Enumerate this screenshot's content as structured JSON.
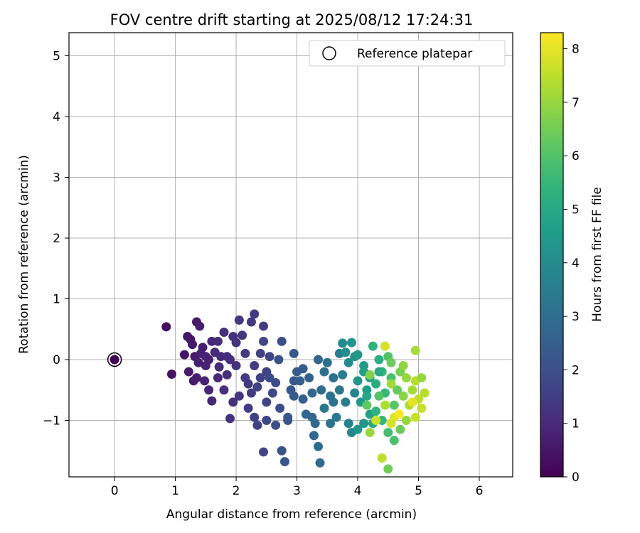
{
  "chart_data": {
    "type": "scatter",
    "title": "FOV centre drift starting at 2025/08/12 17:24:31",
    "xlabel": "Angular distance from reference (arcmin)",
    "ylabel": "Rotation from reference (arcmin)",
    "xlim": [
      -0.75,
      6.55
    ],
    "ylim": [
      -1.93,
      5.38
    ],
    "xticks": [
      0,
      1,
      2,
      3,
      4,
      5,
      6
    ],
    "yticks": [
      -1,
      0,
      1,
      2,
      3,
      4,
      5
    ],
    "grid": true,
    "legend": {
      "placement": "top-right",
      "entries": [
        "Reference platepar"
      ]
    },
    "colorbar": {
      "label": "Hours from first FF file",
      "colormap": "viridis",
      "range": [
        0,
        8.3
      ],
      "ticks": [
        0,
        1,
        2,
        3,
        4,
        5,
        6,
        7,
        8
      ]
    },
    "reference_point": {
      "x": 0,
      "y": 0,
      "color": 0
    },
    "points": [
      [
        0.85,
        0.54,
        0.3
      ],
      [
        0.94,
        -0.24,
        0.4
      ],
      [
        1.2,
        0.38,
        0.5
      ],
      [
        1.25,
        0.33,
        0.5
      ],
      [
        1.35,
        0.62,
        0.6
      ],
      [
        1.4,
        0.55,
        0.7
      ],
      [
        1.15,
        0.08,
        0.5
      ],
      [
        1.22,
        -0.2,
        0.6
      ],
      [
        1.3,
        -0.35,
        0.6
      ],
      [
        1.45,
        0.2,
        0.7
      ],
      [
        1.5,
        -0.1,
        0.8
      ],
      [
        1.55,
        -0.5,
        0.9
      ],
      [
        1.6,
        -0.68,
        0.9
      ],
      [
        1.32,
        0.05,
        0.6
      ],
      [
        1.42,
        0.1,
        0.7
      ],
      [
        1.38,
        -0.05,
        0.7
      ],
      [
        1.28,
        0.25,
        0.6
      ],
      [
        1.5,
        0.05,
        0.8
      ],
      [
        1.6,
        0.3,
        0.9
      ],
      [
        1.7,
        0.3,
        1.0
      ],
      [
        1.65,
        0.12,
        1.0
      ],
      [
        1.72,
        -0.12,
        1.0
      ],
      [
        1.8,
        0.45,
        1.1
      ],
      [
        1.75,
        0.05,
        1.0
      ],
      [
        1.85,
        -0.25,
        1.1
      ],
      [
        1.9,
        0.0,
        1.1
      ],
      [
        1.95,
        0.38,
        1.2
      ],
      [
        2.0,
        0.28,
        1.2
      ],
      [
        2.05,
        0.65,
        1.3
      ],
      [
        2.1,
        0.4,
        1.3
      ],
      [
        1.8,
        -0.5,
        1.1
      ],
      [
        1.95,
        -0.7,
        1.2
      ],
      [
        1.9,
        -0.97,
        1.2
      ],
      [
        2.2,
        -0.4,
        1.4
      ],
      [
        2.25,
        -0.55,
        1.4
      ],
      [
        2.3,
        0.75,
        1.5
      ],
      [
        2.25,
        0.62,
        1.4
      ],
      [
        2.45,
        0.55,
        1.5
      ],
      [
        2.15,
        0.1,
        1.4
      ],
      [
        2.3,
        -0.1,
        1.5
      ],
      [
        2.4,
        -0.3,
        1.6
      ],
      [
        2.2,
        -0.8,
        1.5
      ],
      [
        2.35,
        -1.08,
        1.6
      ],
      [
        2.45,
        -1.52,
        1.7
      ],
      [
        2.3,
        -0.95,
        1.6
      ],
      [
        2.5,
        -0.7,
        1.7
      ],
      [
        2.5,
        -1.0,
        1.8
      ],
      [
        2.6,
        -0.55,
        1.8
      ],
      [
        2.4,
        0.1,
        1.6
      ],
      [
        2.55,
        0.05,
        1.7
      ],
      [
        2.5,
        -0.2,
        1.7
      ],
      [
        2.65,
        -0.38,
        1.9
      ],
      [
        2.65,
        -1.08,
        2.0
      ],
      [
        2.72,
        -0.8,
        2.0
      ],
      [
        2.75,
        0.3,
        2.0
      ],
      [
        2.75,
        -1.5,
        2.1
      ],
      [
        2.8,
        -1.68,
        2.2
      ],
      [
        2.85,
        -1.0,
        2.2
      ],
      [
        2.85,
        -0.95,
        2.2
      ],
      [
        2.9,
        -0.5,
        2.3
      ],
      [
        2.95,
        0.1,
        2.3
      ],
      [
        3.0,
        -0.2,
        2.4
      ],
      [
        2.95,
        -0.6,
        2.4
      ],
      [
        3.05,
        -0.35,
        2.5
      ],
      [
        3.1,
        -0.65,
        2.5
      ],
      [
        3.2,
        -0.3,
        2.6
      ],
      [
        3.25,
        -0.95,
        2.7
      ],
      [
        3.3,
        -1.05,
        2.8
      ],
      [
        3.28,
        -1.25,
        2.8
      ],
      [
        3.35,
        -1.43,
        2.9
      ],
      [
        3.38,
        -1.7,
        2.9
      ],
      [
        3.4,
        -0.5,
        2.9
      ],
      [
        3.45,
        -0.2,
        3.0
      ],
      [
        3.5,
        -0.05,
        3.0
      ],
      [
        3.55,
        -0.6,
        3.1
      ],
      [
        3.6,
        -0.3,
        3.1
      ],
      [
        3.55,
        -1.05,
        3.2
      ],
      [
        3.65,
        -0.95,
        3.3
      ],
      [
        3.7,
        -0.5,
        3.3
      ],
      [
        3.7,
        0.1,
        3.4
      ],
      [
        3.75,
        -0.25,
        3.5
      ],
      [
        3.8,
        -0.7,
        3.6
      ],
      [
        3.85,
        -1.05,
        3.7
      ],
      [
        3.9,
        -1.2,
        3.8
      ],
      [
        3.95,
        -0.55,
        3.8
      ],
      [
        3.75,
        0.27,
        4.0
      ],
      [
        3.8,
        0.12,
        4.1
      ],
      [
        3.85,
        -0.05,
        4.0
      ],
      [
        3.95,
        0.05,
        4.2
      ],
      [
        4.0,
        -0.35,
        4.3
      ],
      [
        4.05,
        -0.7,
        4.4
      ],
      [
        3.9,
        0.28,
        4.3
      ],
      [
        4.0,
        0.08,
        4.4
      ],
      [
        4.1,
        -0.1,
        4.5
      ],
      [
        4.15,
        -0.5,
        4.6
      ],
      [
        4.2,
        -0.9,
        4.7
      ],
      [
        4.0,
        -1.15,
        4.3
      ],
      [
        4.1,
        -1.05,
        4.4
      ],
      [
        4.1,
        -0.2,
        4.6
      ],
      [
        4.2,
        -0.3,
        4.8
      ],
      [
        4.15,
        -0.6,
        4.9
      ],
      [
        4.25,
        -1.05,
        5.0
      ],
      [
        4.3,
        -0.4,
        5.1
      ],
      [
        4.35,
        0.0,
        5.2
      ],
      [
        4.25,
        0.22,
        5.3
      ],
      [
        4.3,
        -0.85,
        5.4
      ],
      [
        4.4,
        -0.2,
        5.5
      ],
      [
        4.4,
        -1.0,
        5.5
      ],
      [
        4.45,
        -0.55,
        5.6
      ],
      [
        4.5,
        -1.2,
        5.8
      ],
      [
        4.55,
        -0.3,
        5.9
      ],
      [
        4.5,
        0.05,
        6.0
      ],
      [
        4.6,
        -0.75,
        6.1
      ],
      [
        4.6,
        -1.33,
        5.9
      ],
      [
        4.65,
        -0.5,
        6.3
      ],
      [
        4.55,
        -0.05,
        6.4
      ],
      [
        4.7,
        -1.15,
        6.4
      ],
      [
        4.7,
        -0.2,
        6.6
      ],
      [
        4.75,
        -0.6,
        6.8
      ],
      [
        4.8,
        -0.3,
        7.0
      ],
      [
        4.8,
        -1.0,
        7.0
      ],
      [
        4.9,
        -0.5,
        7.2
      ],
      [
        4.85,
        -0.75,
        7.3
      ],
      [
        4.95,
        -0.35,
        7.4
      ],
      [
        5.0,
        -0.65,
        7.5
      ],
      [
        5.05,
        -0.8,
        7.6
      ],
      [
        5.1,
        -0.55,
        7.4
      ],
      [
        4.95,
        0.15,
        7.2
      ],
      [
        4.4,
        -1.62,
        7.5
      ],
      [
        4.5,
        -1.8,
        6.5
      ],
      [
        4.45,
        0.22,
        7.8
      ],
      [
        4.35,
        -0.6,
        6.0
      ],
      [
        4.2,
        -1.2,
        7.0
      ],
      [
        4.6,
        -0.95,
        7.9
      ],
      [
        4.68,
        -0.9,
        8.2
      ],
      [
        4.9,
        -0.7,
        8.0
      ],
      [
        4.55,
        -0.4,
        7.1
      ],
      [
        4.2,
        -0.25,
        6.7
      ],
      [
        4.3,
        -1.0,
        7.7
      ],
      [
        4.75,
        -0.1,
        6.9
      ],
      [
        5.05,
        -0.3,
        7.0
      ],
      [
        4.95,
        -0.95,
        7.6
      ],
      [
        4.35,
        -0.2,
        5.0
      ],
      [
        4.15,
        -0.75,
        6.2
      ],
      [
        4.45,
        -0.75,
        7.3
      ],
      [
        4.55,
        -1.05,
        7.8
      ],
      [
        3.6,
        -0.7,
        3.1
      ],
      [
        3.45,
        -0.8,
        3.3
      ],
      [
        3.25,
        -0.55,
        2.8
      ],
      [
        3.15,
        -0.9,
        2.7
      ],
      [
        3.1,
        -0.15,
        2.4
      ],
      [
        3.35,
        0.0,
        2.7
      ],
      [
        2.95,
        -0.35,
        2.3
      ],
      [
        2.7,
        0.0,
        2.1
      ],
      [
        2.55,
        -0.3,
        1.9
      ],
      [
        2.45,
        0.3,
        1.7
      ],
      [
        2.35,
        -0.45,
        1.6
      ],
      [
        2.15,
        -0.3,
        1.4
      ],
      [
        2.05,
        -0.6,
        1.3
      ],
      [
        2.0,
        -0.1,
        1.2
      ],
      [
        1.85,
        0.05,
        1.1
      ],
      [
        1.7,
        -0.3,
        1.0
      ],
      [
        1.55,
        0.0,
        0.8
      ],
      [
        1.48,
        -0.35,
        0.8
      ],
      [
        1.35,
        -0.3,
        0.7
      ]
    ]
  }
}
